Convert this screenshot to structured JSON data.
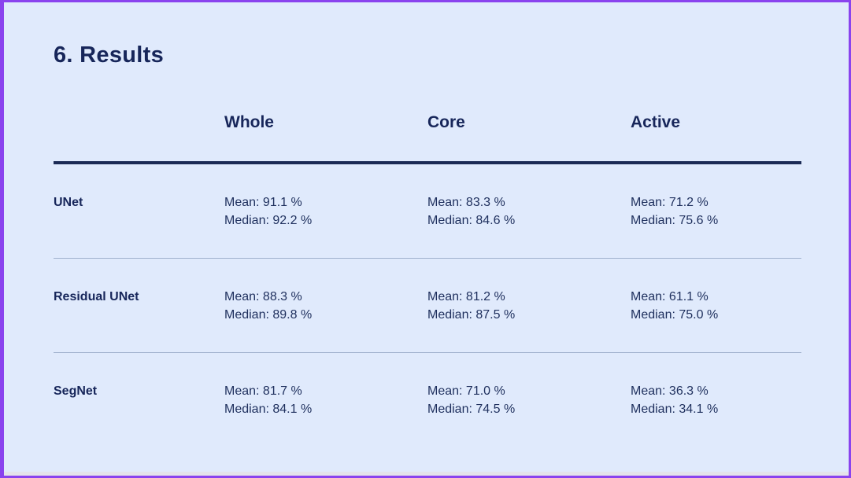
{
  "slide": {
    "title": "6. Results",
    "theme": {
      "background": "#e0eafc",
      "frame_border": "#8a43ee",
      "heading_text": "#17265a",
      "body_text": "#1e2f5d",
      "thick_rule": "#1b2a55",
      "thin_rule": "#9fb0cd"
    },
    "table": {
      "columns": [
        "Whole",
        "Core",
        "Active"
      ],
      "rows": [
        {
          "label": "UNet",
          "cells": [
            {
              "mean": "Mean: 91.1 %",
              "median": "Median: 92.2 %"
            },
            {
              "mean": "Mean: 83.3 %",
              "median": "Median: 84.6 %"
            },
            {
              "mean": "Mean: 71.2 %",
              "median": "Median: 75.6 %"
            }
          ]
        },
        {
          "label": "Residual UNet",
          "cells": [
            {
              "mean": "Mean: 88.3 %",
              "median": "Median: 89.8 %"
            },
            {
              "mean": "Mean: 81.2 %",
              "median": "Median: 87.5 %"
            },
            {
              "mean": "Mean: 61.1 %",
              "median": "Median: 75.0 %"
            }
          ]
        },
        {
          "label": "SegNet",
          "cells": [
            {
              "mean": "Mean: 81.7 %",
              "median": "Median: 84.1 %"
            },
            {
              "mean": "Mean: 71.0 %",
              "median": "Median: 74.5 %"
            },
            {
              "mean": "Mean: 36.3 %",
              "median": "Median: 34.1 %"
            }
          ]
        }
      ]
    }
  }
}
